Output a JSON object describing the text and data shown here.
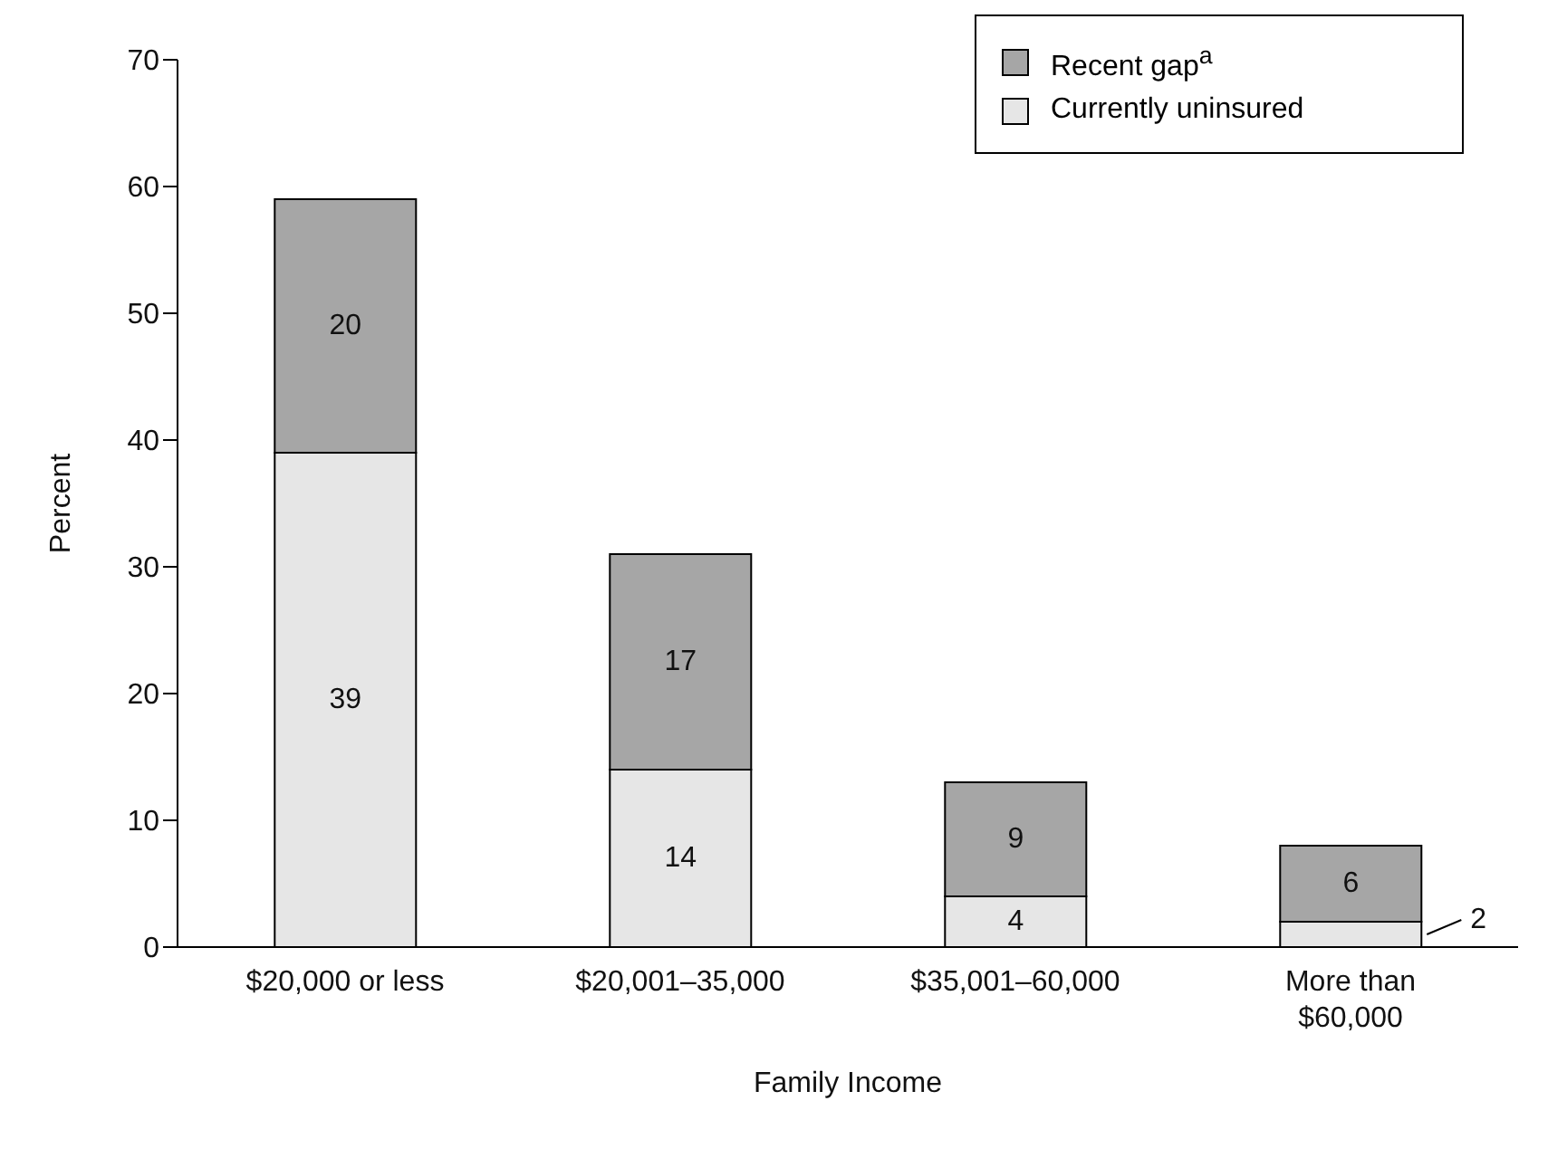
{
  "chart_data": {
    "type": "bar",
    "stacked": true,
    "xlabel": "Family Income",
    "ylabel": "Percent",
    "categories": [
      "$20,000 or less",
      "$20,001–35,000",
      "$35,001–60,000",
      "More than $60,000"
    ],
    "series": [
      {
        "name": "Currently uninsured",
        "color": "#e6e6e6",
        "values": [
          39,
          14,
          4,
          2
        ]
      },
      {
        "name": "Recent gap$^{a}$",
        "color": "#a6a6a6",
        "values": [
          20,
          17,
          9,
          6
        ]
      }
    ],
    "ylim": [
      0,
      70
    ],
    "yticks": [
      0,
      10,
      20,
      30,
      40,
      50,
      60,
      70
    ],
    "grid": false,
    "legend": "top right",
    "data_labels": true
  }
}
